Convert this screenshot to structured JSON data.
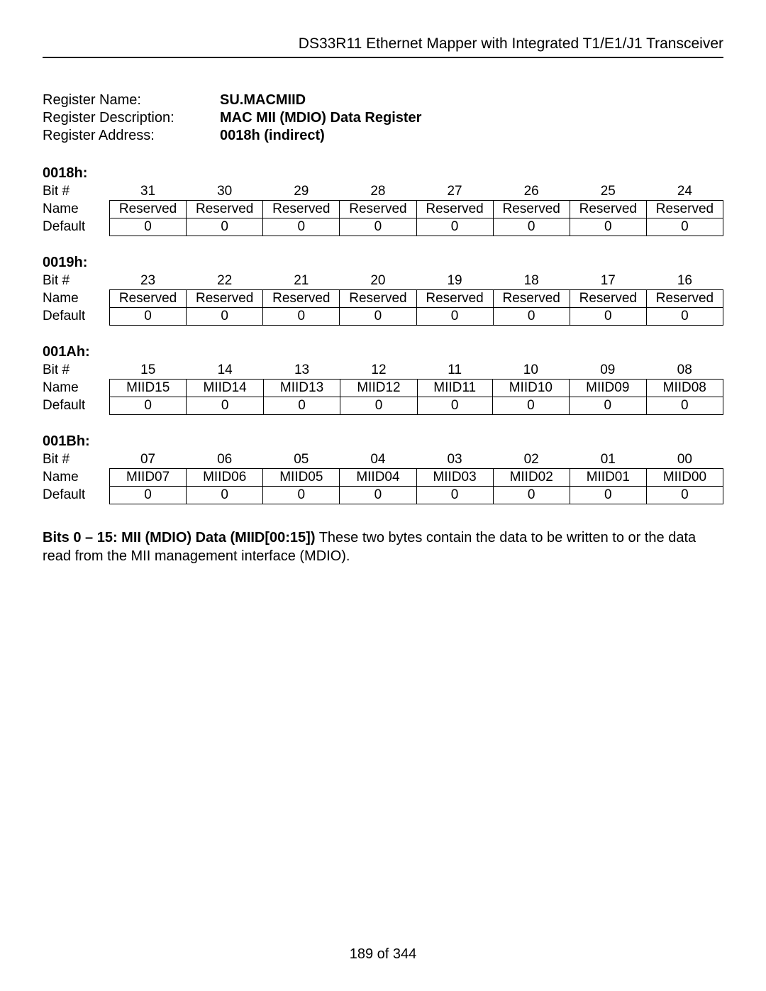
{
  "header": "DS33R11 Ethernet Mapper with Integrated T1/E1/J1 Transceiver",
  "meta": {
    "name_label": "Register Name:",
    "name_value": "SU.MACMIID",
    "desc_label": "Register Description:",
    "desc_value": "MAC MII (MDIO) Data Register",
    "addr_label": "Register Address:",
    "addr_value": "0018h (indirect)"
  },
  "row_headers": {
    "bit": "Bit #",
    "name": "Name",
    "def": "Default"
  },
  "blocks": [
    {
      "addr": "0018h:",
      "bits": [
        "31",
        "30",
        "29",
        "28",
        "27",
        "26",
        "25",
        "24"
      ],
      "names": [
        "Reserved",
        "Reserved",
        "Reserved",
        "Reserved",
        "Reserved",
        "Reserved",
        "Reserved",
        "Reserved"
      ],
      "defs": [
        "0",
        "0",
        "0",
        "0",
        "0",
        "0",
        "0",
        "0"
      ]
    },
    {
      "addr": "0019h:",
      "bits": [
        "23",
        "22",
        "21",
        "20",
        "19",
        "18",
        "17",
        "16"
      ],
      "names": [
        "Reserved",
        "Reserved",
        "Reserved",
        "Reserved",
        "Reserved",
        "Reserved",
        "Reserved",
        "Reserved"
      ],
      "defs": [
        "0",
        "0",
        "0",
        "0",
        "0",
        "0",
        "0",
        "0"
      ]
    },
    {
      "addr": "001Ah:",
      "bits": [
        "15",
        "14",
        "13",
        "12",
        "11",
        "10",
        "09",
        "08"
      ],
      "names": [
        "MIID15",
        "MIID14",
        "MIID13",
        "MIID12",
        "MIID11",
        "MIID10",
        "MIID09",
        "MIID08"
      ],
      "defs": [
        "0",
        "0",
        "0",
        "0",
        "0",
        "0",
        "0",
        "0"
      ]
    },
    {
      "addr": "001Bh:",
      "bits": [
        "07",
        "06",
        "05",
        "04",
        "03",
        "02",
        "01",
        "00"
      ],
      "names": [
        "MIID07",
        "MIID06",
        "MIID05",
        "MIID04",
        "MIID03",
        "MIID02",
        "MIID01",
        "MIID00"
      ],
      "defs": [
        "0",
        "0",
        "0",
        "0",
        "0",
        "0",
        "0",
        "0"
      ]
    }
  ],
  "description": {
    "bold": "Bits 0 – 15: MII (MDIO) Data (MIID[00:15])",
    "rest": " These two bytes contain the data to be written to or the data read from the MII management interface (MDIO)."
  },
  "footer": "189 of 344"
}
